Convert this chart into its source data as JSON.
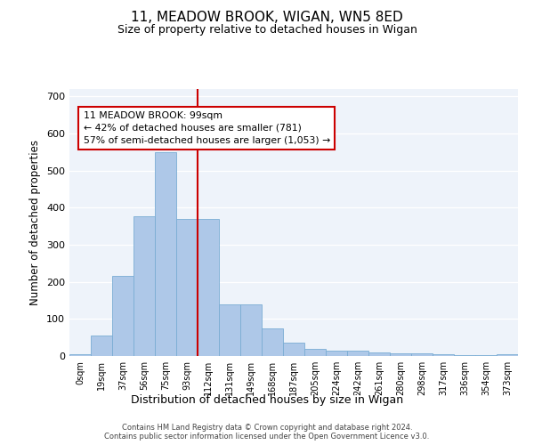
{
  "title1": "11, MEADOW BROOK, WIGAN, WN5 8ED",
  "title2": "Size of property relative to detached houses in Wigan",
  "xlabel": "Distribution of detached houses by size in Wigan",
  "ylabel": "Number of detached properties",
  "bar_color": "#aec8e8",
  "bar_edge_color": "#7aadd4",
  "categories": [
    "0sqm",
    "19sqm",
    "37sqm",
    "56sqm",
    "75sqm",
    "93sqm",
    "112sqm",
    "131sqm",
    "149sqm",
    "168sqm",
    "187sqm",
    "205sqm",
    "224sqm",
    "242sqm",
    "261sqm",
    "280sqm",
    "298sqm",
    "317sqm",
    "336sqm",
    "354sqm",
    "373sqm"
  ],
  "values": [
    5,
    55,
    215,
    378,
    550,
    370,
    370,
    140,
    140,
    75,
    35,
    20,
    15,
    15,
    10,
    8,
    7,
    5,
    2,
    2,
    5
  ],
  "annotation_text": "11 MEADOW BROOK: 99sqm\n← 42% of detached houses are smaller (781)\n57% of semi-detached houses are larger (1,053) →",
  "annotation_box_facecolor": "#ffffff",
  "annotation_box_edgecolor": "#cc0000",
  "line_color": "#cc0000",
  "property_line_x": 5.5,
  "ylim": [
    0,
    720
  ],
  "yticks": [
    0,
    100,
    200,
    300,
    400,
    500,
    600,
    700
  ],
  "footer1": "Contains HM Land Registry data © Crown copyright and database right 2024.",
  "footer2": "Contains public sector information licensed under the Open Government Licence v3.0.",
  "bg_color": "#eef3fa",
  "grid_color": "#ffffff",
  "figsize": [
    6.0,
    5.0
  ],
  "dpi": 100
}
